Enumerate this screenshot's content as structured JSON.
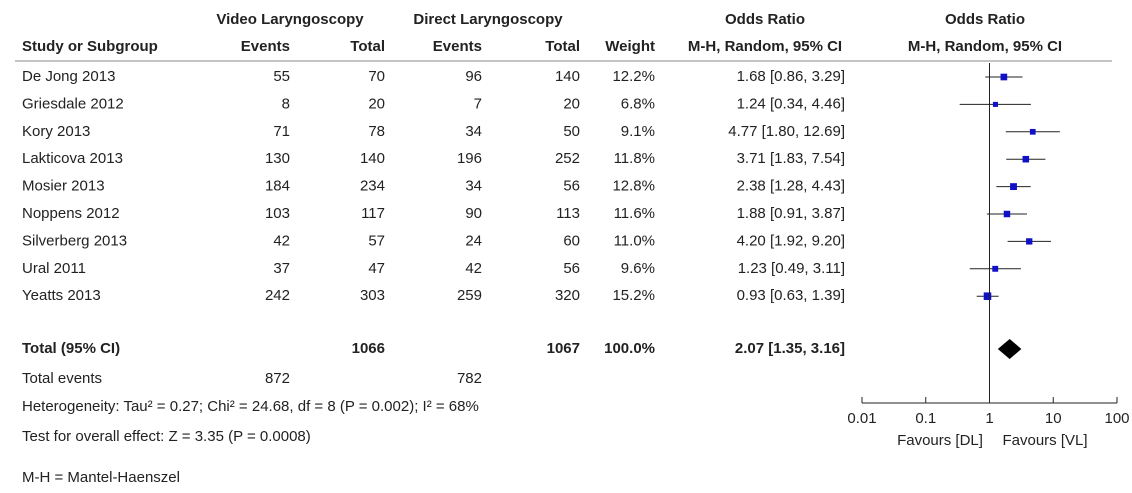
{
  "chart_data": {
    "type": "forest",
    "group_headers": [
      "Video Laryngoscopy",
      "Direct Laryngoscopy",
      "Odds Ratio",
      "Odds Ratio"
    ],
    "columns": [
      "Study or Subgroup",
      "Events",
      "Total",
      "Events",
      "Total",
      "Weight",
      "M-H, Random, 95% CI",
      "M-H, Random, 95% CI"
    ],
    "studies": [
      "De Jong 2013",
      "Griesdale 2012",
      "Kory 2013",
      "Lakticova 2013",
      "Mosier 2013",
      "Noppens 2012",
      "Silverberg 2013",
      "Ural 2011",
      "Yeatts 2013"
    ],
    "vl_events": [
      55,
      8,
      71,
      130,
      184,
      103,
      42,
      37,
      242
    ],
    "vl_total": [
      70,
      20,
      78,
      140,
      234,
      117,
      57,
      47,
      303
    ],
    "dl_events": [
      96,
      7,
      34,
      196,
      34,
      90,
      24,
      42,
      259
    ],
    "dl_total": [
      140,
      20,
      50,
      252,
      56,
      113,
      60,
      56,
      320
    ],
    "weight": [
      12.2,
      6.8,
      9.1,
      11.8,
      12.8,
      11.6,
      11.0,
      9.6,
      15.2
    ],
    "weight_labels": [
      "12.2%",
      "6.8%",
      "9.1%",
      "11.8%",
      "12.8%",
      "11.6%",
      "11.0%",
      "9.6%",
      "15.2%"
    ],
    "or": [
      1.68,
      1.24,
      4.77,
      3.71,
      2.38,
      1.88,
      4.2,
      1.23,
      0.93
    ],
    "lower": [
      0.86,
      0.34,
      1.8,
      1.83,
      1.28,
      0.91,
      1.92,
      0.49,
      0.63
    ],
    "upper": [
      3.29,
      4.46,
      12.69,
      7.54,
      4.43,
      3.87,
      9.2,
      3.11,
      1.39
    ],
    "ci_labels": [
      "1.68 [0.86, 3.29]",
      "1.24 [0.34, 4.46]",
      "4.77 [1.80, 12.69]",
      "3.71 [1.83, 7.54]",
      "2.38 [1.28, 4.43]",
      "1.88 [0.91, 3.87]",
      "4.20 [1.92, 9.20]",
      "1.23 [0.49, 3.11]",
      "0.93 [0.63, 1.39]"
    ],
    "total": {
      "label": "Total (95% CI)",
      "vl_total": 1066,
      "dl_total": 1067,
      "weight": 100.0,
      "weight_label": "100.0%",
      "or": 2.07,
      "lower": 1.35,
      "upper": 3.16,
      "ci_label": "2.07 [1.35, 3.16]"
    },
    "total_events": {
      "label": "Total events",
      "vl": 872,
      "dl": 782
    },
    "heterogeneity": "Heterogeneity: Tau² = 0.27; Chi² = 24.68, df = 8 (P = 0.002); I² = 68%",
    "overall_effect": "Test for overall effect: Z = 3.35 (P = 0.0008)",
    "footnote": "M-H = Mantel-Haenszel",
    "xlim": [
      0.01,
      100
    ],
    "xticks": [
      0.01,
      0.1,
      1,
      10,
      100
    ],
    "log_x": true,
    "favours_left": "Favours [DL]",
    "favours_right": "Favours [VL]",
    "marker_color": "#1010c8",
    "total_color": "#000000"
  }
}
